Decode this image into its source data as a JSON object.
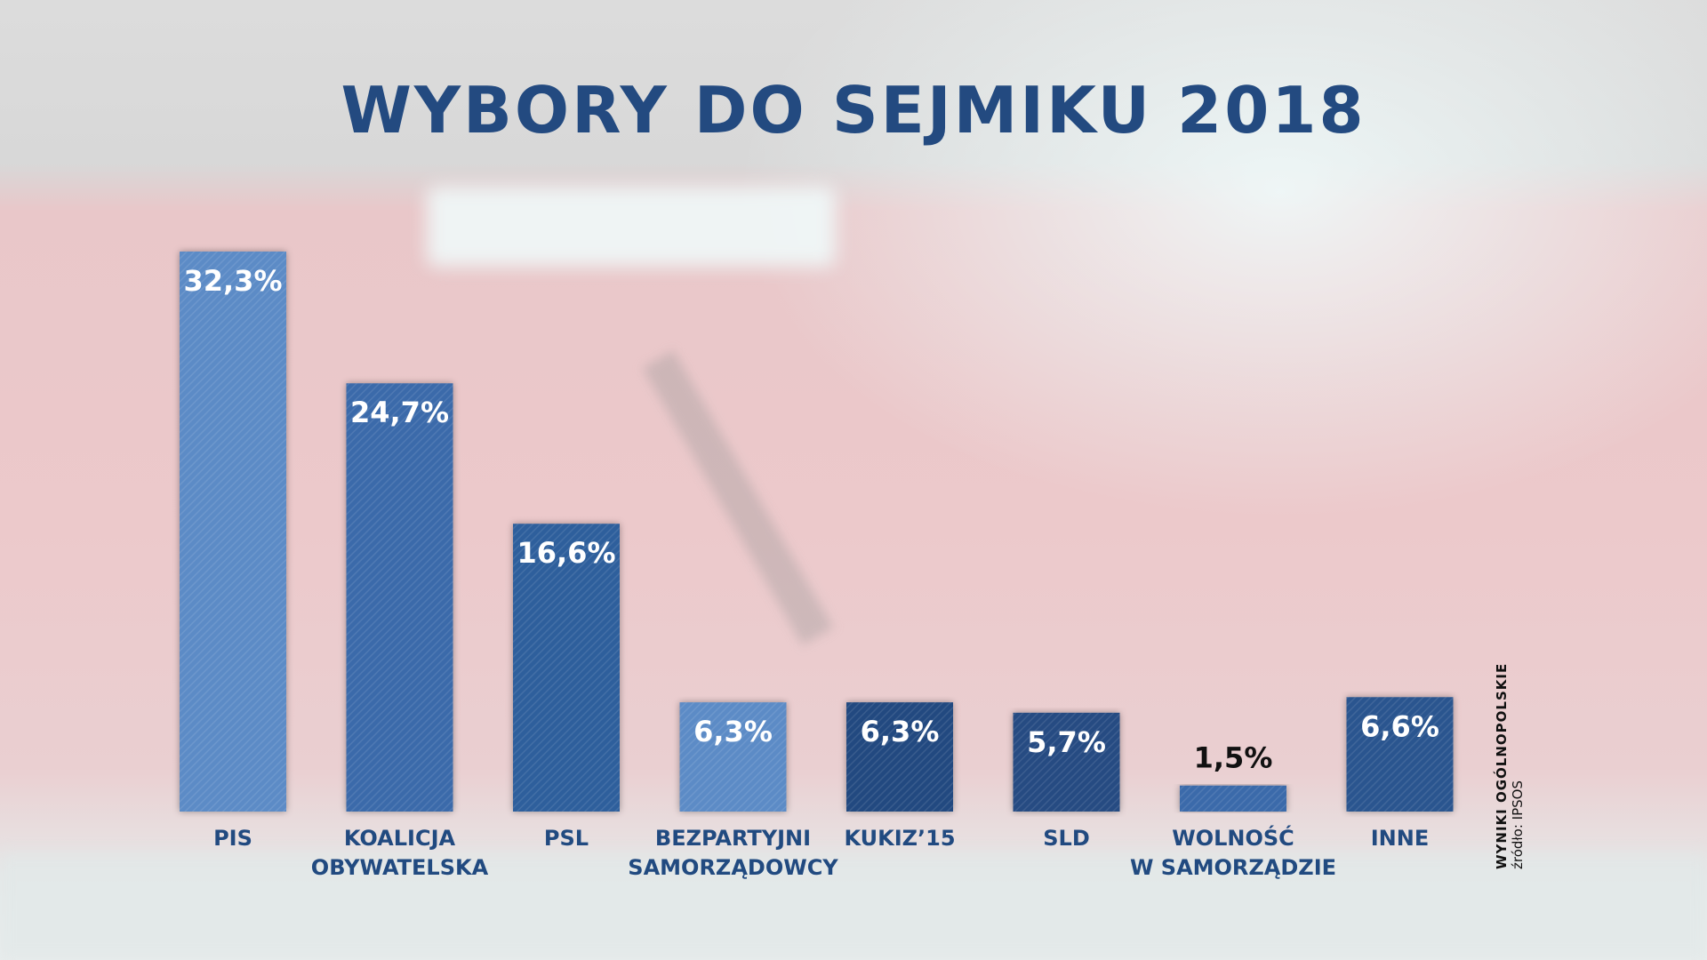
{
  "title": "WYBORY DO SEJMIKU 2018",
  "source": {
    "line1": "WYNIKI OGÓLNOPOLSKIE",
    "line2": "źródło: IPSOS"
  },
  "colors": {
    "title": "#234a80",
    "bar_light": "#5b8bc6",
    "bar_mid": "#3a6aaa",
    "bar_dark": "#2a558f",
    "bar_darkest": "#244a80",
    "label": "#214a80"
  },
  "chart_data": {
    "type": "bar",
    "title": "WYBORY DO SEJMIKU 2018",
    "xlabel": "",
    "ylabel": "",
    "ylim": [
      0,
      35
    ],
    "grid": false,
    "categories": [
      [
        "PIS"
      ],
      [
        "KOALICJA",
        "OBYWATELSKA"
      ],
      [
        "PSL"
      ],
      [
        "BEZPARTYJNI",
        "SAMORZĄDOWCY"
      ],
      [
        "KUKIZ’15"
      ],
      [
        "SLD"
      ],
      [
        "WOLNOŚĆ",
        "W SAMORZĄDZIE"
      ],
      [
        "INNE"
      ]
    ],
    "values": [
      32.3,
      24.7,
      16.6,
      6.3,
      6.3,
      5.7,
      1.5,
      6.6
    ],
    "value_labels": [
      "32,3%",
      "24,7%",
      "16,6%",
      "6,3%",
      "6,3%",
      "5,7%",
      "1,5%",
      "6,6%"
    ],
    "bar_colors": [
      "#5b8bc6",
      "#3a6aaa",
      "#2f5e9c",
      "#5b8bc6",
      "#244a80",
      "#254c82",
      "#3a6aaa",
      "#2a558f"
    ],
    "value_label_colors": [
      "#ffffff",
      "#ffffff",
      "#ffffff",
      "#ffffff",
      "#ffffff",
      "#ffffff",
      "#111111",
      "#ffffff"
    ]
  }
}
